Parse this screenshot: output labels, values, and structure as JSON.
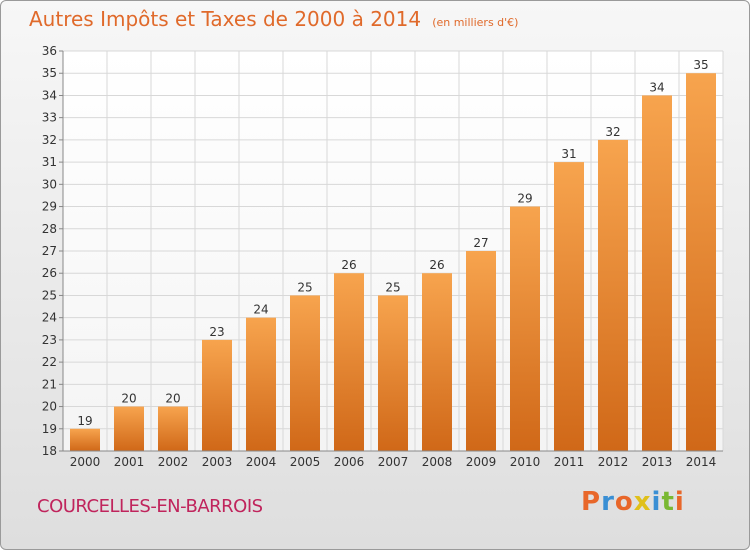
{
  "header": {
    "title": "Autres Impôts et Taxes de 2000 à 2014",
    "subtitle": "(en milliers d'€)"
  },
  "footer": {
    "place": "COURCELLES-EN-BARROIS",
    "logo_text": "Proxiti",
    "logo_colors": [
      "#e8672a",
      "#3a8fd4",
      "#e8672a",
      "#e0c01a",
      "#3a8fd4",
      "#7ab832",
      "#e8672a"
    ]
  },
  "chart_data": {
    "type": "bar",
    "title": "Autres Impôts et Taxes de 2000 à 2014",
    "subtitle": "(en milliers d'€)",
    "xlabel": "",
    "ylabel": "",
    "categories": [
      "2000",
      "2001",
      "2002",
      "2003",
      "2004",
      "2005",
      "2006",
      "2007",
      "2008",
      "2009",
      "2010",
      "2011",
      "2012",
      "2013",
      "2014"
    ],
    "values": [
      19,
      20,
      20,
      23,
      24,
      25,
      26,
      25,
      26,
      27,
      29,
      31,
      32,
      34,
      35
    ],
    "ylim": [
      18,
      36
    ],
    "yticks": [
      18,
      19,
      20,
      21,
      22,
      23,
      24,
      25,
      26,
      27,
      28,
      29,
      30,
      31,
      32,
      33,
      34,
      35,
      36
    ],
    "grid": true,
    "legend": "none",
    "colors": {
      "bar_top": "#f7a44e",
      "bar_bottom": "#d06818",
      "grid": "#d8d8d8",
      "axis": "#888888"
    }
  }
}
